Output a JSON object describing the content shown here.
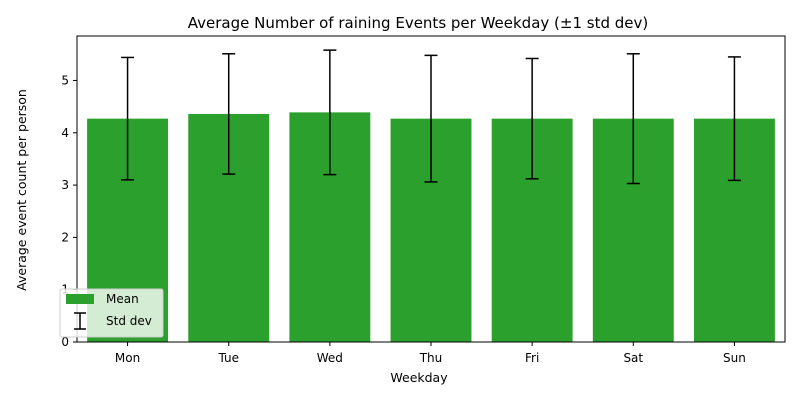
{
  "chart_data": {
    "type": "bar",
    "title": "Average Number of raining Events per Weekday (±1 std dev)",
    "xlabel": "Weekday",
    "ylabel": "Average event count per person",
    "categories": [
      "Mon",
      "Tue",
      "Wed",
      "Thu",
      "Fri",
      "Sat",
      "Sun"
    ],
    "series": [
      {
        "name": "Mean",
        "values": [
          4.27,
          4.36,
          4.39,
          4.27,
          4.27,
          4.27,
          4.27
        ],
        "std": [
          1.17,
          1.15,
          1.19,
          1.21,
          1.15,
          1.24,
          1.18
        ]
      }
    ],
    "ylim": [
      0,
      5.85
    ],
    "yticks": [
      0,
      1,
      2,
      3,
      4,
      5
    ],
    "legend": {
      "position": "lower-left",
      "entries": [
        "Mean",
        "Std dev"
      ]
    },
    "grid": false,
    "colors": {
      "bar": "#2ca02c",
      "errorbar": "#000000",
      "axes": "#000000"
    }
  }
}
